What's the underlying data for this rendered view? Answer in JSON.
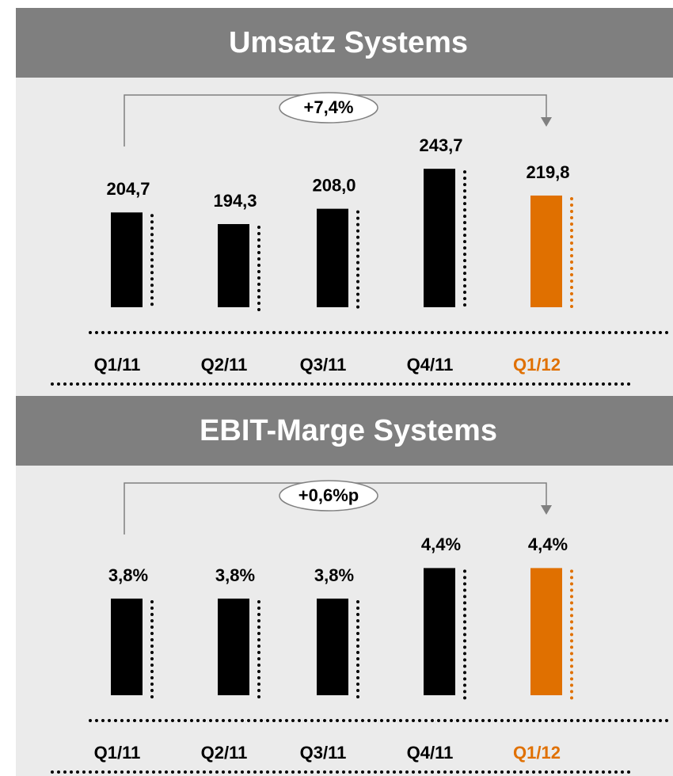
{
  "chart_data": [
    {
      "type": "bar",
      "title": "Umsatz Systems",
      "annotation": "+7,4%",
      "categories": [
        "Q1/11",
        "Q2/11",
        "Q3/11",
        "Q4/11",
        "Q1/12"
      ],
      "values": [
        204.7,
        194.3,
        208.0,
        243.7,
        219.8
      ],
      "value_labels": [
        "204,7",
        "194,3",
        "208,0",
        "243,7",
        "219,8"
      ],
      "colors": [
        "#000000",
        "#000000",
        "#000000",
        "#000000",
        "#e07000"
      ],
      "ylim": [
        120,
        270
      ]
    },
    {
      "type": "bar",
      "title": "EBIT-Marge Systems",
      "annotation": "+0,6%p",
      "categories": [
        "Q1/11",
        "Q2/11",
        "Q3/11",
        "Q4/11",
        "Q1/12"
      ],
      "values": [
        3.8,
        3.8,
        3.8,
        4.4,
        4.4
      ],
      "value_labels": [
        "3,8%",
        "3,8%",
        "3,8%",
        "4,4%",
        "4,4%"
      ],
      "colors": [
        "#000000",
        "#000000",
        "#000000",
        "#000000",
        "#e07000"
      ],
      "ylim": [
        1.9,
        5.2
      ]
    }
  ]
}
